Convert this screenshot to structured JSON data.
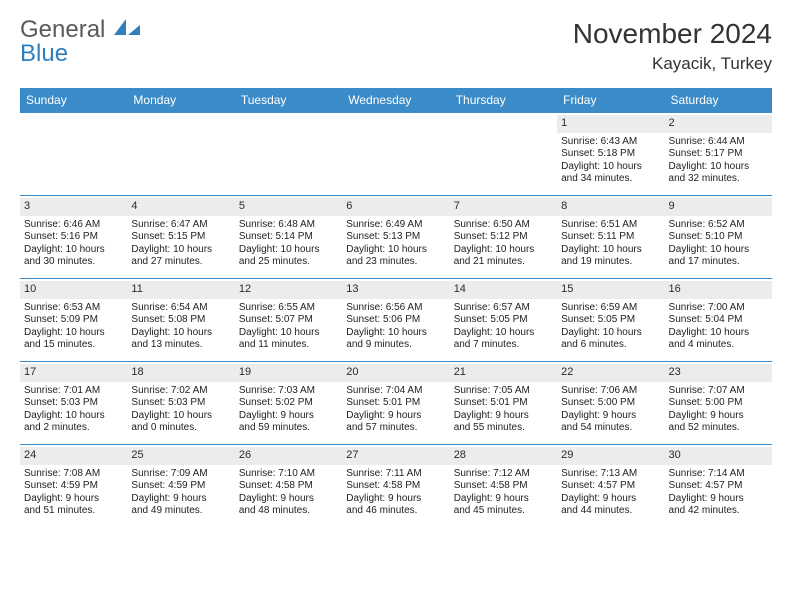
{
  "logo": {
    "word1": "General",
    "word2": "Blue"
  },
  "title": "November 2024",
  "location": "Kayacik, Turkey",
  "colors": {
    "header_bg": "#3b8bc8",
    "header_text": "#ffffff",
    "daynum_bg": "#ececec",
    "rule": "#3b8bc8",
    "logo_gray": "#5a5a5a",
    "logo_blue": "#2f7fbf"
  },
  "day_headers": [
    "Sunday",
    "Monday",
    "Tuesday",
    "Wednesday",
    "Thursday",
    "Friday",
    "Saturday"
  ],
  "weeks": [
    [
      null,
      null,
      null,
      null,
      null,
      {
        "n": "1",
        "sunrise": "6:43 AM",
        "sunset": "5:18 PM",
        "daylight": "10 hours and 34 minutes."
      },
      {
        "n": "2",
        "sunrise": "6:44 AM",
        "sunset": "5:17 PM",
        "daylight": "10 hours and 32 minutes."
      }
    ],
    [
      {
        "n": "3",
        "sunrise": "6:46 AM",
        "sunset": "5:16 PM",
        "daylight": "10 hours and 30 minutes."
      },
      {
        "n": "4",
        "sunrise": "6:47 AM",
        "sunset": "5:15 PM",
        "daylight": "10 hours and 27 minutes."
      },
      {
        "n": "5",
        "sunrise": "6:48 AM",
        "sunset": "5:14 PM",
        "daylight": "10 hours and 25 minutes."
      },
      {
        "n": "6",
        "sunrise": "6:49 AM",
        "sunset": "5:13 PM",
        "daylight": "10 hours and 23 minutes."
      },
      {
        "n": "7",
        "sunrise": "6:50 AM",
        "sunset": "5:12 PM",
        "daylight": "10 hours and 21 minutes."
      },
      {
        "n": "8",
        "sunrise": "6:51 AM",
        "sunset": "5:11 PM",
        "daylight": "10 hours and 19 minutes."
      },
      {
        "n": "9",
        "sunrise": "6:52 AM",
        "sunset": "5:10 PM",
        "daylight": "10 hours and 17 minutes."
      }
    ],
    [
      {
        "n": "10",
        "sunrise": "6:53 AM",
        "sunset": "5:09 PM",
        "daylight": "10 hours and 15 minutes."
      },
      {
        "n": "11",
        "sunrise": "6:54 AM",
        "sunset": "5:08 PM",
        "daylight": "10 hours and 13 minutes."
      },
      {
        "n": "12",
        "sunrise": "6:55 AM",
        "sunset": "5:07 PM",
        "daylight": "10 hours and 11 minutes."
      },
      {
        "n": "13",
        "sunrise": "6:56 AM",
        "sunset": "5:06 PM",
        "daylight": "10 hours and 9 minutes."
      },
      {
        "n": "14",
        "sunrise": "6:57 AM",
        "sunset": "5:05 PM",
        "daylight": "10 hours and 7 minutes."
      },
      {
        "n": "15",
        "sunrise": "6:59 AM",
        "sunset": "5:05 PM",
        "daylight": "10 hours and 6 minutes."
      },
      {
        "n": "16",
        "sunrise": "7:00 AM",
        "sunset": "5:04 PM",
        "daylight": "10 hours and 4 minutes."
      }
    ],
    [
      {
        "n": "17",
        "sunrise": "7:01 AM",
        "sunset": "5:03 PM",
        "daylight": "10 hours and 2 minutes."
      },
      {
        "n": "18",
        "sunrise": "7:02 AM",
        "sunset": "5:03 PM",
        "daylight": "10 hours and 0 minutes."
      },
      {
        "n": "19",
        "sunrise": "7:03 AM",
        "sunset": "5:02 PM",
        "daylight": "9 hours and 59 minutes."
      },
      {
        "n": "20",
        "sunrise": "7:04 AM",
        "sunset": "5:01 PM",
        "daylight": "9 hours and 57 minutes."
      },
      {
        "n": "21",
        "sunrise": "7:05 AM",
        "sunset": "5:01 PM",
        "daylight": "9 hours and 55 minutes."
      },
      {
        "n": "22",
        "sunrise": "7:06 AM",
        "sunset": "5:00 PM",
        "daylight": "9 hours and 54 minutes."
      },
      {
        "n": "23",
        "sunrise": "7:07 AM",
        "sunset": "5:00 PM",
        "daylight": "9 hours and 52 minutes."
      }
    ],
    [
      {
        "n": "24",
        "sunrise": "7:08 AM",
        "sunset": "4:59 PM",
        "daylight": "9 hours and 51 minutes."
      },
      {
        "n": "25",
        "sunrise": "7:09 AM",
        "sunset": "4:59 PM",
        "daylight": "9 hours and 49 minutes."
      },
      {
        "n": "26",
        "sunrise": "7:10 AM",
        "sunset": "4:58 PM",
        "daylight": "9 hours and 48 minutes."
      },
      {
        "n": "27",
        "sunrise": "7:11 AM",
        "sunset": "4:58 PM",
        "daylight": "9 hours and 46 minutes."
      },
      {
        "n": "28",
        "sunrise": "7:12 AM",
        "sunset": "4:58 PM",
        "daylight": "9 hours and 45 minutes."
      },
      {
        "n": "29",
        "sunrise": "7:13 AM",
        "sunset": "4:57 PM",
        "daylight": "9 hours and 44 minutes."
      },
      {
        "n": "30",
        "sunrise": "7:14 AM",
        "sunset": "4:57 PM",
        "daylight": "9 hours and 42 minutes."
      }
    ]
  ],
  "labels": {
    "sunrise": "Sunrise:",
    "sunset": "Sunset:",
    "daylight": "Daylight:"
  }
}
